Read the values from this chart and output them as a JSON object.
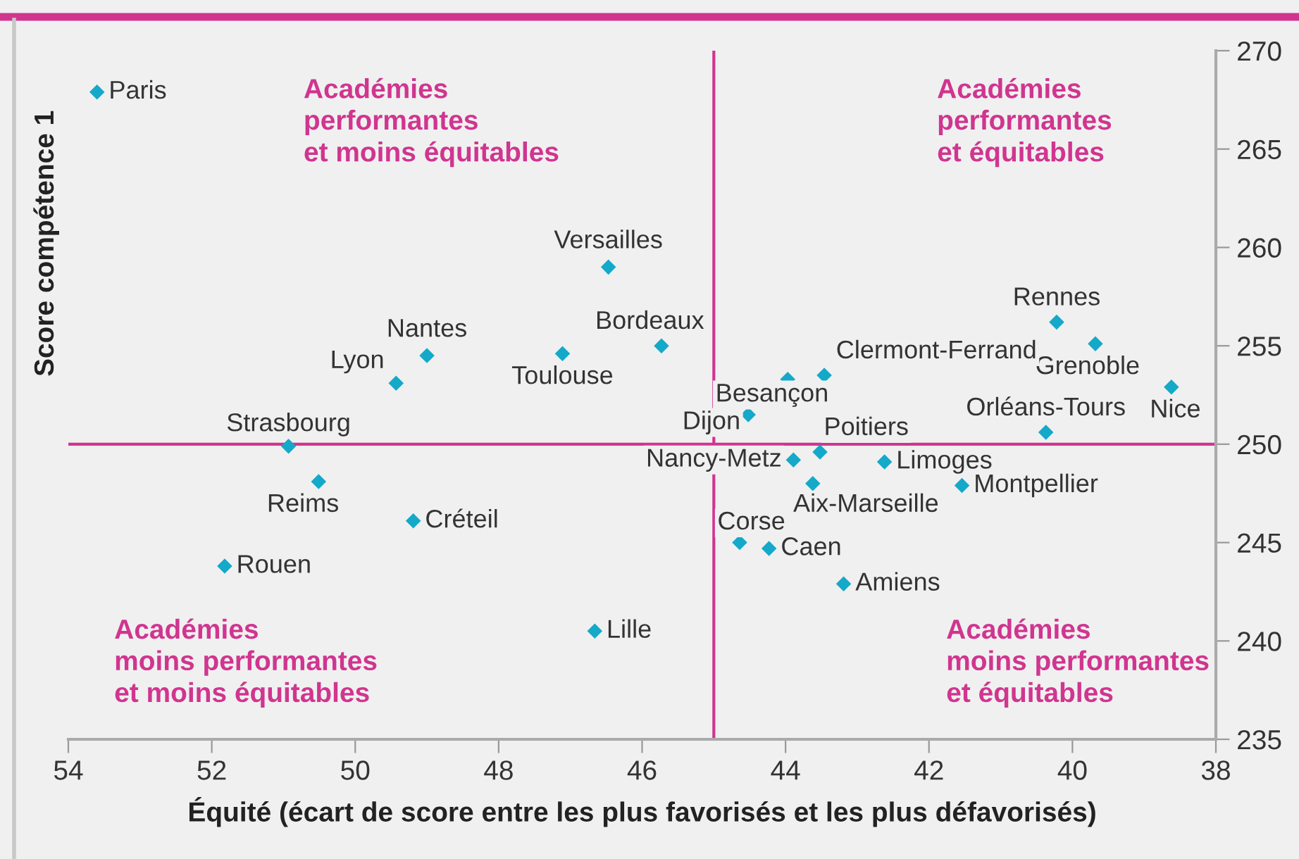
{
  "chart_data": {
    "type": "scatter",
    "xlabel": "Équité (écart de score entre les plus favorisés et les plus défavorisés)",
    "ylabel": "Score compétence 1",
    "x": [
      53.6,
      46.47,
      49.0,
      49.43,
      47.11,
      50.93,
      45.73,
      40.22,
      39.68,
      38.62,
      43.97,
      43.46,
      44.52,
      40.37,
      43.52,
      43.89,
      42.62,
      43.62,
      41.54,
      44.64,
      44.23,
      43.19,
      50.51,
      49.19,
      51.82,
      46.66
    ],
    "series": [
      {
        "color": "#14a9c9",
        "values": [
          267.9,
          259.0,
          254.5,
          253.1,
          254.6,
          249.9,
          255.0,
          256.2,
          255.1,
          252.9,
          253.3,
          253.5,
          251.5,
          250.6,
          249.6,
          249.2,
          249.1,
          248.0,
          247.9,
          245.0,
          244.7,
          242.9,
          248.1,
          246.1,
          243.8,
          240.5
        ]
      }
    ],
    "marker": "diamond",
    "xlim": [
      54,
      38
    ],
    "ylim": [
      235,
      270
    ],
    "xticks": [
      54,
      52,
      50,
      48,
      46,
      44,
      42,
      40,
      38
    ],
    "yticks": [
      235,
      240,
      245,
      250,
      255,
      260,
      265,
      270
    ],
    "grid": false,
    "ref_lines": [
      {
        "axis": "y",
        "value": 250,
        "color": "#d0358f"
      },
      {
        "axis": "x",
        "value": 45,
        "color": "#d0358f"
      }
    ],
    "annotations": [
      {
        "text": "Paris",
        "x": 53.6,
        "y": 267.9
      },
      {
        "text": "Versailles",
        "x": 46.47,
        "y": 259.0
      },
      {
        "text": "Nantes",
        "x": 49.0,
        "y": 254.5
      },
      {
        "text": "Lyon",
        "x": 49.43,
        "y": 253.1
      },
      {
        "text": "Toulouse",
        "x": 47.11,
        "y": 254.6
      },
      {
        "text": "Strasbourg",
        "x": 50.93,
        "y": 249.9
      },
      {
        "text": "Bordeaux",
        "x": 45.73,
        "y": 255.0
      },
      {
        "text": "Rennes",
        "x": 40.22,
        "y": 256.2
      },
      {
        "text": "Grenoble",
        "x": 39.68,
        "y": 255.1
      },
      {
        "text": "Nice",
        "x": 38.62,
        "y": 252.9
      },
      {
        "text": "Besançon",
        "x": 43.97,
        "y": 253.3
      },
      {
        "text": "Clermont-Ferrand",
        "x": 43.46,
        "y": 253.5
      },
      {
        "text": "Dijon",
        "x": 44.52,
        "y": 251.5
      },
      {
        "text": "Orléans-Tours",
        "x": 40.37,
        "y": 250.6
      },
      {
        "text": "Poitiers",
        "x": 43.52,
        "y": 249.6
      },
      {
        "text": "Nancy-Metz",
        "x": 43.89,
        "y": 249.2
      },
      {
        "text": "Limoges",
        "x": 42.62,
        "y": 249.1
      },
      {
        "text": "Aix-Marseille",
        "x": 43.62,
        "y": 248.0
      },
      {
        "text": "Montpellier",
        "x": 41.54,
        "y": 247.9
      },
      {
        "text": "Corse",
        "x": 44.64,
        "y": 245.0
      },
      {
        "text": "Caen",
        "x": 44.23,
        "y": 244.7
      },
      {
        "text": "Amiens",
        "x": 43.19,
        "y": 242.9
      },
      {
        "text": "Reims",
        "x": 50.51,
        "y": 248.1
      },
      {
        "text": "Créteil",
        "x": 49.19,
        "y": 246.1
      },
      {
        "text": "Rouen",
        "x": 51.82,
        "y": 243.8
      },
      {
        "text": "Lille",
        "x": 46.66,
        "y": 240.5
      },
      "Académies\nperformantes\net moins équitables",
      "Académies\nperformantes\net équitables",
      "Académies\nmoins performantes\net moins équitables",
      "Académies\nmoins performantes\net équitables"
    ]
  }
}
